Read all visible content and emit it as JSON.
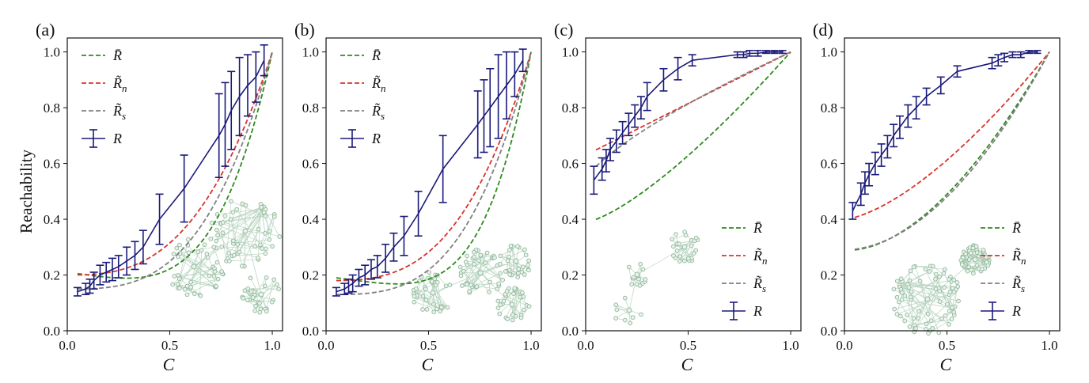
{
  "colors": {
    "mean_field": "#2e8b1f",
    "node_approx": "#d9342b",
    "size_approx": "#808080",
    "measured": "#1a1a7a",
    "network_node": "#8fb89a",
    "network_edge": "#b8d4c0"
  },
  "ylabel": "Reachability",
  "xlabel": "C",
  "legend_labels": {
    "mean_field": "R̄",
    "node_approx": "R̃",
    "node_sub": "n",
    "size_approx": "R̃",
    "size_sub": "s",
    "measured": "R"
  },
  "chart_data": [
    {
      "panel": "(a)",
      "type": "line",
      "xlim": [
        0,
        1.05
      ],
      "ylim": [
        0,
        1.05
      ],
      "xticks": [
        "0.0",
        "0.5",
        "1.0"
      ],
      "yticks": [
        "0.0",
        "0.2",
        "0.4",
        "0.6",
        "0.8",
        "1.0"
      ],
      "legend_position": "top-left",
      "inset_network": "three-hub tree network",
      "curves": {
        "mean_field_exp": 3.85,
        "node": [
          0.2,
          2.8
        ],
        "size": [
          0.15,
          3.1
        ]
      },
      "series_R": {
        "x": [
          0.05,
          0.09,
          0.11,
          0.13,
          0.16,
          0.19,
          0.22,
          0.25,
          0.29,
          0.33,
          0.37,
          0.45,
          0.57,
          0.74,
          0.77,
          0.8,
          0.84,
          0.88,
          0.92,
          0.96
        ],
        "y": [
          0.14,
          0.15,
          0.16,
          0.18,
          0.2,
          0.21,
          0.22,
          0.23,
          0.25,
          0.27,
          0.3,
          0.4,
          0.51,
          0.7,
          0.74,
          0.79,
          0.84,
          0.88,
          0.91,
          0.97
        ],
        "err": [
          0.015,
          0.02,
          0.025,
          0.03,
          0.035,
          0.035,
          0.04,
          0.04,
          0.05,
          0.05,
          0.06,
          0.09,
          0.12,
          0.15,
          0.15,
          0.14,
          0.14,
          0.11,
          0.09,
          0.055
        ]
      }
    },
    {
      "panel": "(b)",
      "type": "line",
      "xlim": [
        0,
        1.05
      ],
      "ylim": [
        0,
        1.05
      ],
      "xticks": [
        "0.0",
        "0.5",
        "1.0"
      ],
      "yticks": [
        "0.0",
        "0.2",
        "0.4",
        "0.6",
        "0.8",
        "1.0"
      ],
      "legend_position": "top-left",
      "inset_network": "branching tree network",
      "curves": {
        "mean_field_exp": 4.5,
        "node": [
          0.18,
          3.0
        ],
        "size": [
          0.13,
          3.3
        ]
      },
      "series_R": {
        "x": [
          0.05,
          0.09,
          0.11,
          0.13,
          0.16,
          0.19,
          0.22,
          0.25,
          0.29,
          0.33,
          0.38,
          0.45,
          0.57,
          0.74,
          0.77,
          0.8,
          0.84,
          0.88,
          0.92,
          0.96
        ],
        "y": [
          0.14,
          0.15,
          0.16,
          0.17,
          0.19,
          0.2,
          0.22,
          0.23,
          0.26,
          0.3,
          0.34,
          0.42,
          0.58,
          0.74,
          0.77,
          0.8,
          0.84,
          0.88,
          0.92,
          0.97
        ],
        "err": [
          0.015,
          0.02,
          0.025,
          0.03,
          0.03,
          0.035,
          0.035,
          0.04,
          0.05,
          0.05,
          0.07,
          0.08,
          0.12,
          0.12,
          0.13,
          0.14,
          0.15,
          0.12,
          0.08,
          0.04
        ]
      }
    },
    {
      "panel": "(c)",
      "type": "line",
      "xlim": [
        0,
        1.05
      ],
      "ylim": [
        0,
        1.05
      ],
      "xticks": [
        "0.0",
        "0.5",
        "1.0"
      ],
      "yticks": [
        "0.0",
        "0.2",
        "0.4",
        "0.6",
        "0.8",
        "1.0"
      ],
      "legend_position": "bottom-right",
      "inset_network": "sparse chain network",
      "curves": {
        "mean_field_exp": 1.3,
        "node": [
          0.63,
          1.0
        ],
        "size": [
          0.54,
          0.75
        ]
      },
      "series_R": {
        "x": [
          0.04,
          0.08,
          0.1,
          0.12,
          0.15,
          0.18,
          0.21,
          0.24,
          0.27,
          0.3,
          0.38,
          0.45,
          0.52,
          0.74,
          0.77,
          0.8,
          0.84,
          0.88,
          0.92,
          0.96
        ],
        "y": [
          0.54,
          0.58,
          0.61,
          0.65,
          0.68,
          0.71,
          0.74,
          0.77,
          0.8,
          0.84,
          0.9,
          0.94,
          0.97,
          0.99,
          0.99,
          0.995,
          0.995,
          1.0,
          1.0,
          1.0
        ],
        "err": [
          0.05,
          0.04,
          0.04,
          0.04,
          0.04,
          0.04,
          0.04,
          0.04,
          0.04,
          0.05,
          0.04,
          0.04,
          0.02,
          0.01,
          0.01,
          0.01,
          0.01,
          0.005,
          0.005,
          0.005
        ]
      }
    },
    {
      "panel": "(d)",
      "type": "line",
      "xlim": [
        0,
        1.05
      ],
      "ylim": [
        0,
        1.05
      ],
      "xticks": [
        "0.0",
        "0.5",
        "1.0"
      ],
      "yticks": [
        "0.0",
        "0.2",
        "0.4",
        "0.6",
        "0.8",
        "1.0"
      ],
      "legend_position": "bottom-right",
      "inset_network": "dense core network",
      "curves": {
        "mean_field_exp": 1.7,
        "node": [
          0.4,
          1.5
        ],
        "size": [
          0.29,
          1.9
        ]
      },
      "series_R": {
        "x": [
          0.04,
          0.08,
          0.1,
          0.12,
          0.15,
          0.18,
          0.21,
          0.24,
          0.27,
          0.31,
          0.35,
          0.4,
          0.47,
          0.55,
          0.72,
          0.75,
          0.78,
          0.82,
          0.86,
          0.9,
          0.94
        ],
        "y": [
          0.43,
          0.49,
          0.53,
          0.56,
          0.6,
          0.63,
          0.66,
          0.7,
          0.73,
          0.77,
          0.8,
          0.84,
          0.88,
          0.93,
          0.96,
          0.97,
          0.98,
          0.99,
          0.99,
          1.0,
          1.0
        ],
        "err": [
          0.03,
          0.04,
          0.04,
          0.04,
          0.04,
          0.04,
          0.04,
          0.04,
          0.04,
          0.04,
          0.04,
          0.03,
          0.03,
          0.02,
          0.02,
          0.02,
          0.015,
          0.01,
          0.01,
          0.005,
          0.005
        ]
      }
    }
  ]
}
